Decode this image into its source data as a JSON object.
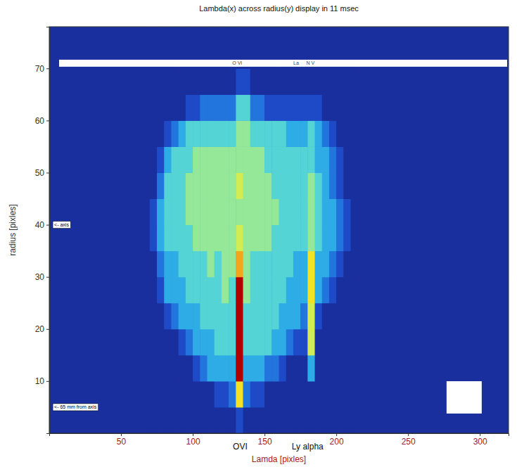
{
  "chart_data": {
    "type": "heatmap",
    "title": "Lambda(x) across radius(y) display in 11 msec",
    "x_label": "Lamda [pixles]",
    "y_label": "radius [pixles]",
    "xlim": [
      0,
      320
    ],
    "ylim": [
      0,
      78
    ],
    "xticks": [
      50,
      100,
      150,
      200,
      250,
      300
    ],
    "yticks": [
      10,
      20,
      30,
      40,
      50,
      60,
      70
    ],
    "zlim": [
      0,
      10
    ],
    "x_markers": [
      {
        "value": 133,
        "label": "OVI"
      },
      {
        "value": 180,
        "label": "Ly alpha"
      }
    ],
    "band": {
      "y": 71,
      "labels": [
        {
          "text": "O VI",
          "x": 131
        },
        {
          "text": "La",
          "x": 172
        },
        {
          "text": "N V",
          "x": 182
        }
      ]
    },
    "annotations": [
      {
        "text": "<- axis",
        "x": 2,
        "y": 40
      },
      {
        "text": "<- 65 mm from axis",
        "x": 2,
        "y": 5
      }
    ],
    "x_edges": [
      0,
      70,
      75,
      80,
      85,
      90,
      95,
      100,
      105,
      110,
      115,
      120,
      125,
      130,
      135,
      140,
      145,
      150,
      155,
      160,
      165,
      170,
      175,
      180,
      185,
      190,
      195,
      200,
      205,
      210,
      215,
      320
    ],
    "y_edges": [
      0,
      5,
      10,
      15,
      20,
      25,
      30,
      35,
      40,
      45,
      50,
      55,
      60,
      65,
      70,
      75,
      78
    ],
    "z": [
      [
        0,
        0,
        0,
        0,
        0,
        0,
        0,
        0,
        0,
        0,
        0,
        0,
        0,
        1,
        0,
        0,
        0,
        0,
        0,
        0,
        0,
        0,
        0,
        0,
        0,
        0,
        0,
        0,
        0,
        0,
        0
      ],
      [
        0,
        0,
        0,
        0,
        0,
        0,
        0,
        0,
        0,
        0,
        1,
        1,
        2,
        7,
        2,
        1,
        1,
        0,
        0,
        0,
        0,
        0,
        0,
        0,
        0,
        0,
        0,
        0,
        0,
        0,
        0
      ],
      [
        0,
        0,
        0,
        0,
        0,
        0,
        0,
        1,
        2,
        3,
        3,
        3,
        3,
        10,
        3,
        3,
        3,
        2,
        2,
        1,
        0,
        0,
        0,
        3,
        0,
        0,
        0,
        0,
        0,
        0,
        0
      ],
      [
        0,
        0,
        0,
        0,
        0,
        1,
        2,
        3,
        3,
        3,
        4,
        4,
        4,
        10,
        4,
        4,
        4,
        4,
        3,
        3,
        2,
        1,
        1,
        6,
        0,
        0,
        0,
        0,
        0,
        0,
        0
      ],
      [
        0,
        0,
        0,
        1,
        2,
        3,
        3,
        3,
        4,
        4,
        4,
        4,
        4,
        10,
        4,
        4,
        4,
        4,
        4,
        3,
        3,
        3,
        2,
        6,
        1,
        0,
        0,
        0,
        0,
        0,
        0
      ],
      [
        0,
        0,
        1,
        3,
        3,
        3,
        4,
        4,
        4,
        4,
        4,
        5,
        4,
        10,
        5,
        4,
        4,
        4,
        4,
        4,
        3,
        3,
        3,
        7,
        3,
        2,
        1,
        0,
        0,
        0,
        0
      ],
      [
        0,
        0,
        2,
        3,
        3,
        4,
        4,
        4,
        4,
        5,
        4,
        5,
        5,
        8,
        5,
        4,
        4,
        4,
        4,
        4,
        4,
        3,
        3,
        7,
        3,
        3,
        2,
        1,
        0,
        0,
        0
      ],
      [
        0,
        1,
        3,
        4,
        4,
        4,
        4,
        5,
        5,
        5,
        5,
        5,
        5,
        6,
        5,
        5,
        5,
        5,
        4,
        4,
        4,
        4,
        4,
        5,
        4,
        3,
        3,
        2,
        1,
        0,
        0
      ],
      [
        0,
        1,
        3,
        4,
        4,
        4,
        5,
        5,
        5,
        5,
        5,
        5,
        5,
        5,
        5,
        5,
        5,
        5,
        5,
        4,
        4,
        4,
        4,
        5,
        4,
        3,
        3,
        2,
        1,
        0,
        0
      ],
      [
        0,
        0,
        2,
        4,
        4,
        4,
        5,
        5,
        5,
        5,
        5,
        5,
        5,
        6,
        5,
        5,
        5,
        5,
        4,
        4,
        4,
        4,
        4,
        5,
        4,
        3,
        2,
        1,
        0,
        0,
        0
      ],
      [
        0,
        0,
        1,
        3,
        4,
        4,
        4,
        5,
        5,
        5,
        5,
        5,
        5,
        5,
        5,
        5,
        5,
        4,
        4,
        4,
        4,
        4,
        4,
        4,
        3,
        3,
        2,
        1,
        0,
        0,
        0
      ],
      [
        0,
        0,
        0,
        1,
        2,
        3,
        4,
        4,
        4,
        4,
        4,
        4,
        4,
        5,
        5,
        4,
        4,
        4,
        4,
        4,
        3,
        3,
        3,
        4,
        3,
        2,
        1,
        0,
        0,
        0,
        0
      ],
      [
        0,
        0,
        0,
        0,
        0,
        0,
        1,
        1,
        2,
        2,
        2,
        2,
        2,
        4,
        4,
        2,
        2,
        1,
        1,
        1,
        1,
        1,
        1,
        1,
        1,
        0,
        0,
        0,
        0,
        0,
        0
      ],
      [
        0,
        0,
        0,
        0,
        0,
        0,
        0,
        0,
        0,
        0,
        0,
        0,
        0,
        1,
        1,
        0,
        0,
        0,
        0,
        0,
        0,
        0,
        0,
        0,
        0,
        0,
        0,
        0,
        0,
        0,
        0
      ],
      [
        0,
        0,
        0,
        0,
        0,
        0,
        0,
        0,
        0,
        0,
        0,
        0,
        0,
        0,
        0,
        0,
        0,
        0,
        0,
        0,
        0,
        0,
        0,
        0,
        0,
        0,
        0,
        0,
        0,
        0,
        0
      ],
      [
        0,
        0,
        0,
        0,
        0,
        0,
        0,
        0,
        0,
        0,
        0,
        0,
        0,
        0,
        0,
        0,
        0,
        0,
        0,
        0,
        0,
        0,
        0,
        0,
        0,
        0,
        0,
        0,
        0,
        0,
        0
      ]
    ]
  }
}
